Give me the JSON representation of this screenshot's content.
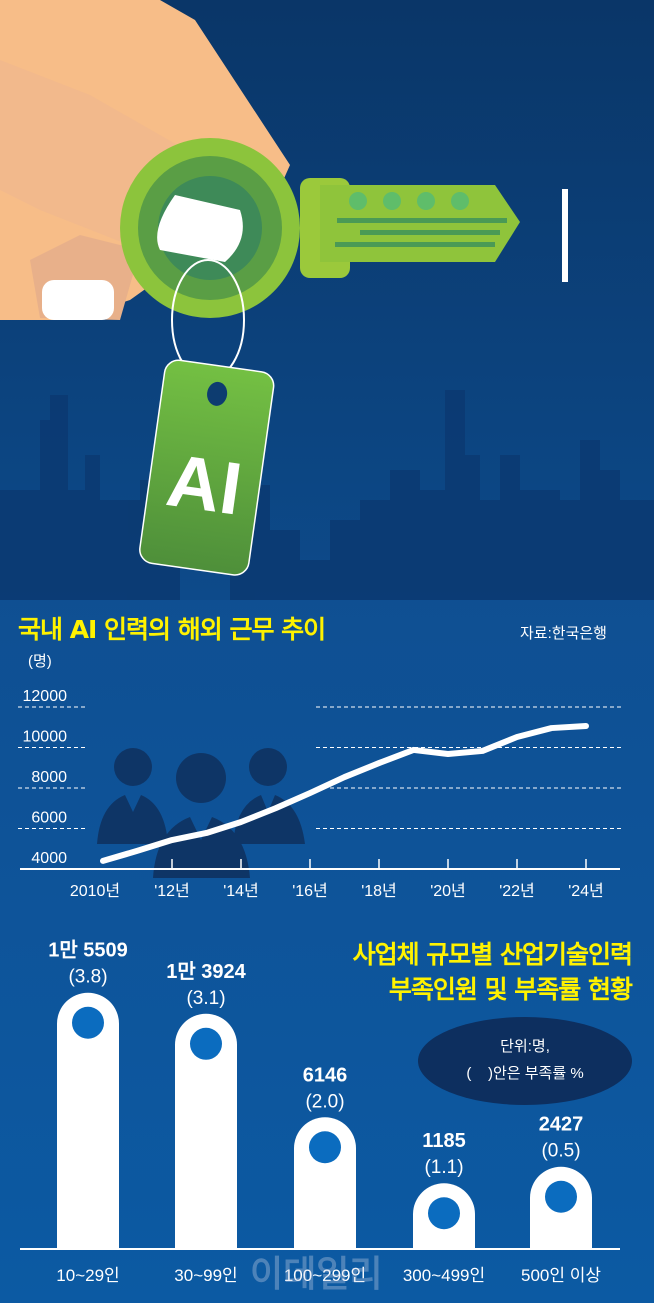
{
  "illustration": {
    "tag_text": "AI"
  },
  "line_chart_title": "국내 AI 인력의 해외 근무 추이",
  "source": "자료:한국은행",
  "bar_chart_title_line1": "사업체 규모별 산업기술인력",
  "bar_chart_title_line2": "부족인원 및 부족률 현황",
  "unit_note_line1": "단위:명,",
  "unit_note_line2": "(    )안은 부족률 %",
  "watermark": "이데일리",
  "colors": {
    "background": "#0f4f92",
    "title": "#fff200",
    "line": "#ffffff",
    "bar": "#ffffff",
    "dot": "#0b6cbf"
  },
  "chart_data": [
    {
      "type": "line",
      "title": "국내 AI 인력의 해외 근무 추이",
      "ylabel": "(명)",
      "ylim": [
        4000,
        12000
      ],
      "yticks": [
        "12000",
        "10000",
        "8000",
        "6000",
        "4000"
      ],
      "xticks": [
        "2010년",
        "'12년",
        "'14년",
        "'16년",
        "'18년",
        "'20년",
        "'22년",
        "'24년"
      ],
      "grid": true,
      "x": [
        2010,
        2011,
        2012,
        2013,
        2014,
        2015,
        2016,
        2017,
        2018,
        2019,
        2020,
        2021,
        2022,
        2023,
        2024
      ],
      "values": [
        4400,
        4900,
        5430,
        5780,
        6320,
        7000,
        7750,
        8540,
        9230,
        9880,
        9680,
        9830,
        10520,
        10960,
        11060
      ]
    },
    {
      "type": "bar",
      "title": "사업체 규모별 산업기술인력 부족인원 및 부족률 현황",
      "categories": [
        "10~29인",
        "30~99인",
        "100~299인",
        "300~499인",
        "500인 이상"
      ],
      "values": [
        15509,
        13924,
        6146,
        1185,
        2427
      ],
      "value_labels": [
        "1만 5509",
        "1만 3924",
        "6146",
        "1185",
        "2427"
      ],
      "rates": [
        3.8,
        3.1,
        2.0,
        1.1,
        0.5
      ],
      "rate_labels": [
        "(3.8)",
        "(3.1)",
        "(2.0)",
        "(1.1)",
        "(0.5)"
      ]
    }
  ]
}
